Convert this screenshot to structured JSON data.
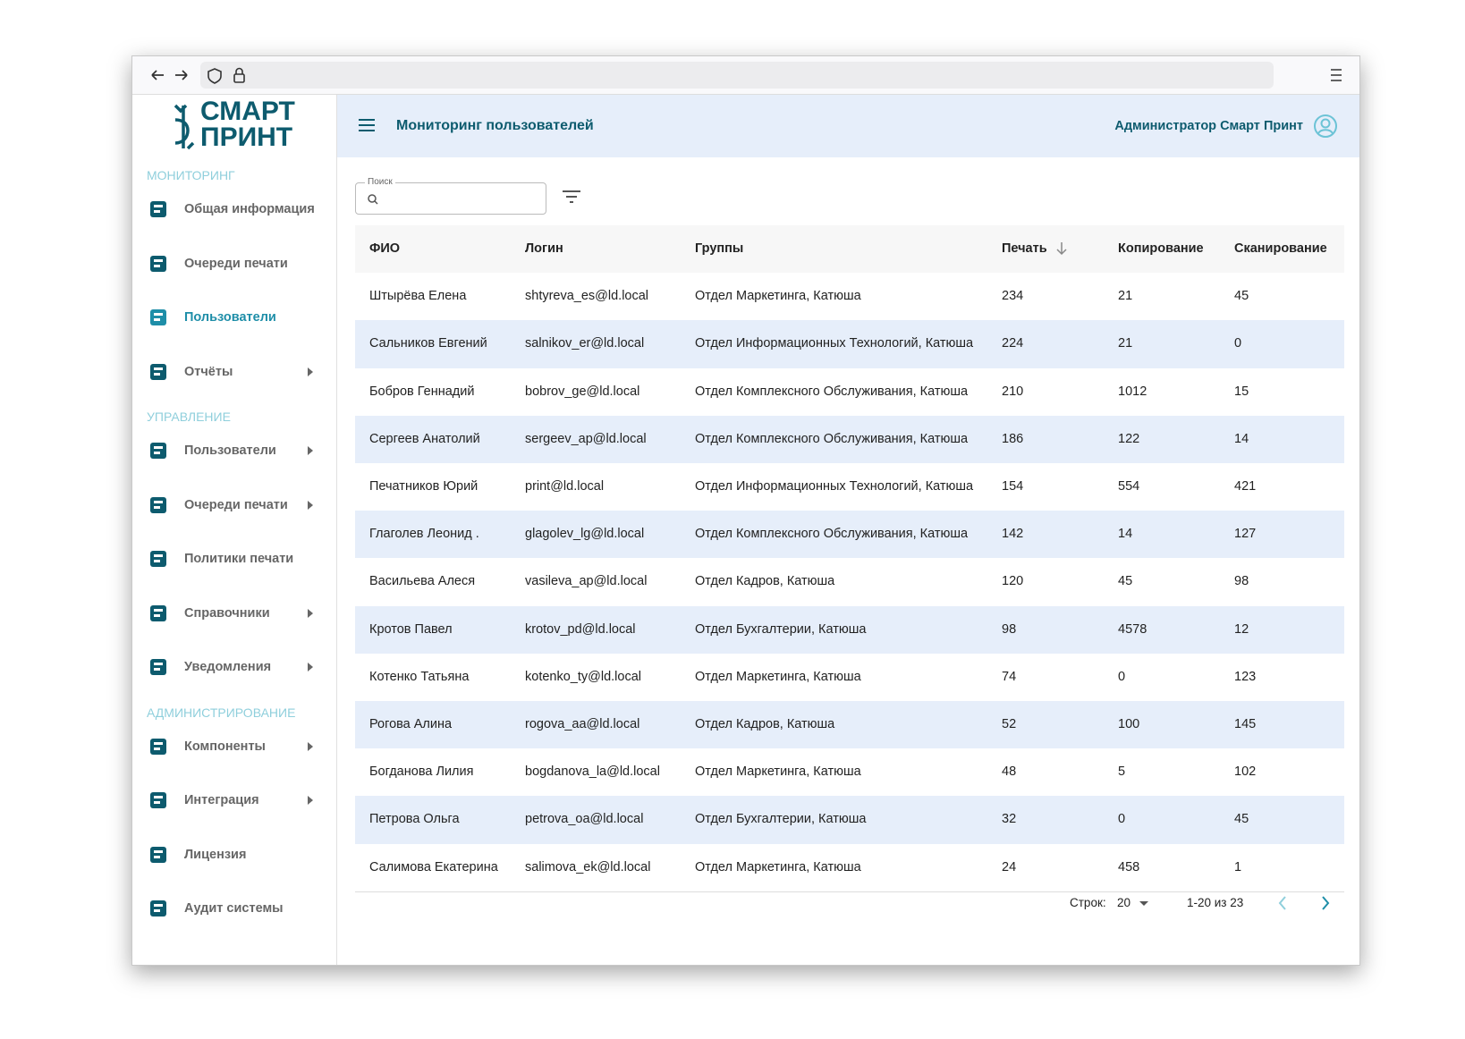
{
  "logo": [
    "СМАРТ",
    "ПРИНТ"
  ],
  "sidebar": [
    {
      "title": "МОНИТОРИНГ",
      "items": [
        {
          "label": "Общая информация"
        },
        {
          "label": "Очереди печати"
        },
        {
          "label": "Пользователи",
          "active": true
        },
        {
          "label": "Отчёты",
          "submenu": true
        }
      ]
    },
    {
      "title": "УПРАВЛЕНИЕ",
      "items": [
        {
          "label": "Пользователи",
          "submenu": true
        },
        {
          "label": "Очереди печати",
          "submenu": true
        },
        {
          "label": "Политики печати"
        },
        {
          "label": "Справочники",
          "submenu": true
        },
        {
          "label": "Уведомления",
          "submenu": true
        }
      ]
    },
    {
      "title": "АДМИНИСТРИРОВАНИЕ",
      "items": [
        {
          "label": "Компоненты",
          "submenu": true
        },
        {
          "label": "Интеграция",
          "submenu": true
        },
        {
          "label": "Лицензия"
        },
        {
          "label": "Аудит системы"
        }
      ]
    }
  ],
  "header": {
    "title": "Мониторинг пользователей",
    "user": "Администратор Смарт Принт"
  },
  "search": {
    "label": "Поиск"
  },
  "table": {
    "columns": [
      "ФИО",
      "Логин",
      "Группы",
      "Печать",
      "Копирование",
      "Сканирование"
    ],
    "sorted_column": 3,
    "rows": [
      [
        "Штырёва Елена",
        "shtyreva_es@ld.local",
        "Отдел Маркетинга, Катюша",
        234,
        21,
        45
      ],
      [
        "Сальников Евгений",
        "salnikov_er@ld.local",
        "Отдел Информационных Технологий, Катюша",
        224,
        21,
        0
      ],
      [
        "Бобров Геннадий",
        "bobrov_ge@ld.local",
        "Отдел Комплексного Обслуживания, Катюша",
        210,
        1012,
        15
      ],
      [
        "Сергеев Анатолий",
        "sergeev_ap@ld.local",
        "Отдел Комплексного Обслуживания, Катюша",
        186,
        122,
        14
      ],
      [
        "Печатников Юрий",
        "print@ld.local",
        "Отдел Информационных Технологий, Катюша",
        154,
        554,
        421
      ],
      [
        "Глаголев Леонид .",
        "glagolev_lg@ld.local",
        "Отдел Комплексного Обслуживания, Катюша",
        142,
        14,
        127
      ],
      [
        "Васильева Алеся",
        "vasileva_ap@ld.local",
        "Отдел Кадров, Катюша",
        120,
        45,
        98
      ],
      [
        "Кротов Павел",
        "krotov_pd@ld.local",
        "Отдел Бухгалтерии, Катюша",
        98,
        4578,
        12
      ],
      [
        "Котенко Татьяна",
        "kotenko_ty@ld.local",
        "Отдел Маркетинга, Катюша",
        74,
        0,
        123
      ],
      [
        "Рогова Алина",
        "rogova_aa@ld.local",
        "Отдел Кадров, Катюша",
        52,
        100,
        145
      ],
      [
        "Богданова Лилия",
        "bogdanova_la@ld.local",
        "Отдел Маркетинга, Катюша",
        48,
        5,
        102
      ],
      [
        "Петрова Ольга",
        "petrova_oa@ld.local",
        "Отдел Бухгалтерии, Катюша",
        32,
        0,
        45
      ],
      [
        "Салимова Екатерина",
        "salimova_ek@ld.local",
        "Отдел Маркетинга, Катюша",
        24,
        458,
        1
      ]
    ]
  },
  "pagination": {
    "rows_label": "Строк:",
    "rows_per_page": 20,
    "range": "1-20 из 23"
  }
}
